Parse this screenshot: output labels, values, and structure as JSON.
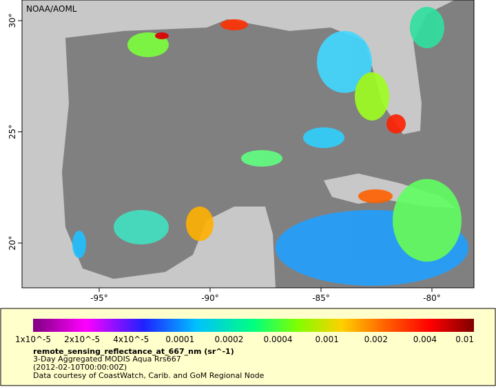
{
  "map": {
    "credit": "NOAA/AOML",
    "lon_ticks": [
      {
        "value": -95,
        "label": "-95°"
      },
      {
        "value": -90,
        "label": "-90°"
      },
      {
        "value": -85,
        "label": "-85°"
      },
      {
        "value": -80,
        "label": "-80°"
      }
    ],
    "lat_ticks": [
      {
        "value": 30,
        "label": "30°"
      },
      {
        "value": 25,
        "label": "25°"
      },
      {
        "value": 20,
        "label": "20°"
      }
    ]
  },
  "colorbar": {
    "labels": [
      "1x10^-5",
      "2x10^-5",
      "4x10^-5",
      "0.0001",
      "0.0002",
      "0.0004",
      "0.001",
      "0.002",
      "0.004",
      "0.01"
    ]
  },
  "caption": {
    "variable": "remote_sensing_reflectance_at_667_nm (sr^-1)",
    "lines": [
      "3-Day Aggregated MODIS Aqua Rrs667",
      "(2012-02-10T00:00:00Z)",
      "Data courtesy of CoastWatch, Carib. and GoM Regional Node"
    ]
  }
}
